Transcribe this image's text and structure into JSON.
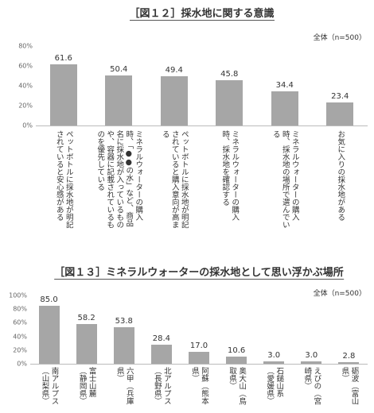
{
  "chart_data": [
    {
      "type": "bar",
      "title": "［図１２］採水地に関する意識",
      "note": "全体（n=500）",
      "categories": [
        "ペットボトルに採水地が明記されていると安心感がある",
        "ミネラルウォーターの購入時、「●●の水」など、商品名に採水地が入っているものや、容器に記載されているものを優先している",
        "ペットボトルに採水地が明記されていると購入意向が高まる",
        "ミネラルウォーターの購入時、採水地を確認する",
        "ミネラルウォーターの購入時、採水地の場所で選んでいる",
        "お気に入りの採水地がある"
      ],
      "values": [
        61.6,
        50.4,
        49.4,
        45.8,
        34.4,
        23.4
      ],
      "color": "#a6a6a6",
      "ylim": [
        0,
        80
      ],
      "yticks": [
        {
          "value": 0,
          "label": "0%"
        },
        {
          "value": 20,
          "label": "20%"
        },
        {
          "value": 40,
          "label": "40%"
        },
        {
          "value": 60,
          "label": "60%"
        },
        {
          "value": 80,
          "label": "80%"
        }
      ]
    },
    {
      "type": "bar",
      "title": "［図１３］ミネラルウォーターの採水地として思い浮かぶ場所",
      "note": "全体（n=500）",
      "categories": [
        "南アルプス（山梨県）",
        "富士山麓（静岡県）",
        "六甲（兵庫県）",
        "北アルプス（長野県）",
        "阿蘇（熊本県）",
        "奥大山（鳥取県）",
        "石鎚山系（愛媛県）",
        "えびの（宮崎県）",
        "砺波（富山県）"
      ],
      "values": [
        85,
        58.2,
        53.8,
        28.4,
        17,
        10.6,
        3,
        3,
        2.8
      ],
      "value_labels": [
        "85.0",
        "58.2",
        "53.8",
        "28.4",
        "17.0",
        "10.6",
        "3.0",
        "3.0",
        "2.8"
      ],
      "color": "#a6a6a6",
      "ylim": [
        0,
        100
      ],
      "yticks": [
        {
          "value": 0,
          "label": "0%"
        },
        {
          "value": 20,
          "label": "20%"
        },
        {
          "value": 40,
          "label": "40%"
        },
        {
          "value": 60,
          "label": "60%"
        },
        {
          "value": 80,
          "label": "80%"
        },
        {
          "value": 100,
          "label": "100%"
        }
      ]
    }
  ]
}
